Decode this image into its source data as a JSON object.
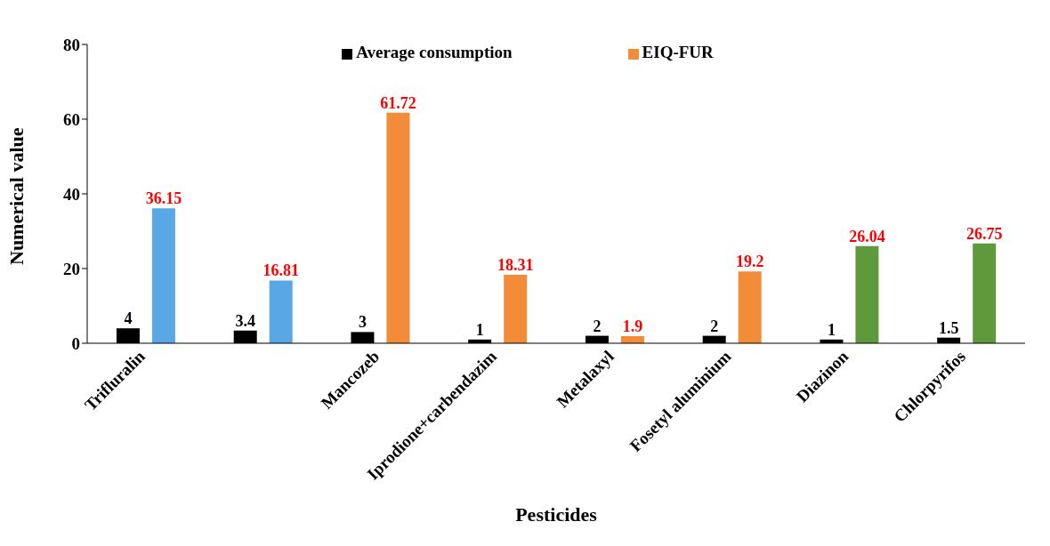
{
  "chart_data": {
    "type": "bar",
    "xlabel": "Pesticides",
    "ylabel": "Numerical value",
    "categories": [
      "Trifluralin",
      null,
      "Mancozeb",
      "Iprodione+carbendazim",
      "Metalaxyl",
      "Fosetyl aluminium",
      "Diazinon",
      "Chlorpyrifos"
    ],
    "series": [
      {
        "name": "Average consumption",
        "color": "#000000",
        "values": [
          4,
          3.4,
          3,
          1,
          2,
          2,
          1,
          1.5
        ]
      },
      {
        "name": "EIQ-FUR",
        "color": "#f28c38",
        "colors": [
          "#5aa7e6",
          "#5aa7e6",
          "#f28c38",
          "#f28c38",
          "#f28c38",
          "#f28c38",
          "#5e9a3c",
          "#5e9a3c"
        ],
        "values": [
          36.15,
          16.81,
          61.72,
          18.31,
          1.9,
          19.2,
          26.04,
          26.75
        ]
      }
    ],
    "ylim": [
      0,
      80
    ],
    "yticks": [
      0,
      20,
      40,
      60,
      80
    ],
    "grid": false,
    "legend": "top",
    "data_labels": true
  }
}
